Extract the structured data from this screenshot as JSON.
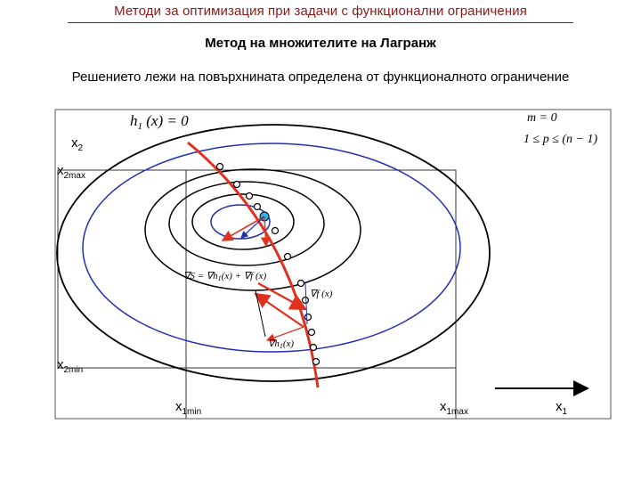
{
  "header": {
    "title": "Методи за оптимизация при задачи с функционални ограничения"
  },
  "slide": {
    "title": "Метод на множителите на Лагранж",
    "subtitle": "Решението лежи на повърхнината определена от функционалното ограничение"
  },
  "diagram": {
    "constraint_label": "h1(x) = 0",
    "conditions": [
      "m = 0",
      "1 ≤ p ≤ (n − 1)"
    ],
    "gradient_S_label": "∇S = ∇h1(x) + ∇f(x)",
    "gradient_f_label": "∇f(x)",
    "gradient_h_label": "∇h1(x)",
    "axis_labels": {
      "x2": {
        "base": "x",
        "sub": "2"
      },
      "x2max": {
        "base": "x",
        "sub": "2max"
      },
      "x2min": {
        "base": "x",
        "sub": "2min"
      },
      "x1min": {
        "base": "x",
        "sub": "1min"
      },
      "x1max": {
        "base": "x",
        "sub": "1max"
      },
      "x1": {
        "base": "x",
        "sub": "1"
      }
    },
    "colors": {
      "constraint_curve": "#e0301e",
      "contours": "#000000",
      "inner_contours": "#1f2fb0",
      "gradient_arrows": "#e0301e",
      "optimum_point": "#27b8e8",
      "header_text": "#8b1a1a"
    }
  }
}
